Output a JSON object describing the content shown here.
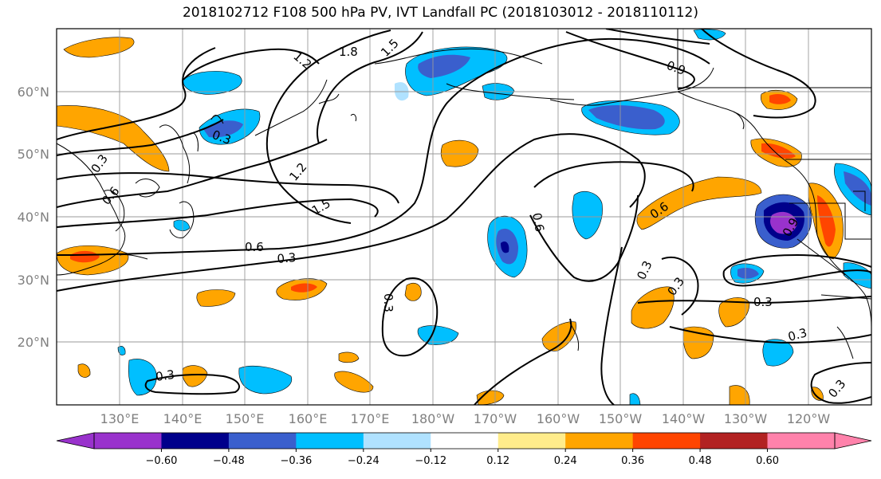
{
  "title": "2018102712 F108 500 hPa PV, IVT Landfall PC (2018103012 - 2018110112)",
  "lat_labels": [
    "20°N",
    "30°N",
    "40°N",
    "50°N",
    "60°N"
  ],
  "lon_labels": [
    "130°E",
    "140°E",
    "150°E",
    "160°E",
    "170°E",
    "180°W",
    "170°W",
    "160°W",
    "150°W",
    "140°W",
    "130°W",
    "120°W"
  ],
  "colorbar": {
    "colors": [
      "#9932cc",
      "#00008b",
      "#3a5fcd",
      "#00bfff",
      "#b0e2ff",
      "#ffffff",
      "#ffec8b",
      "#ffa500",
      "#ff4500",
      "#b22222",
      "#ff82ab"
    ],
    "tick_labels": [
      "−0.60",
      "−0.48",
      "−0.36",
      "−0.24",
      "−0.12",
      "0.12",
      "0.24",
      "0.36",
      "0.48",
      "0.60"
    ]
  },
  "contour_labels": [
    "1.8",
    "1.5",
    "1.2",
    "0.9",
    "0.3",
    "0.6",
    "1.2",
    "1.5",
    "0.6",
    "0.3",
    "0.3",
    "0.6",
    "0.6",
    "0.3",
    "0.3",
    "0.3",
    "0.3",
    "0.3",
    "0.3",
    "0.3",
    "0.9"
  ]
}
